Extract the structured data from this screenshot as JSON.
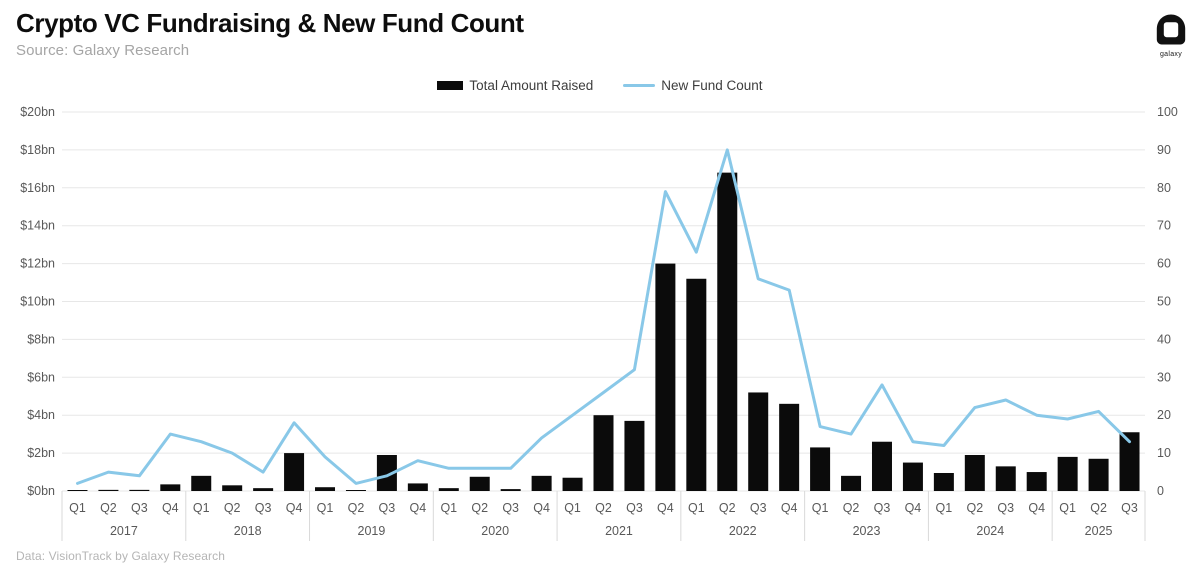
{
  "header": {
    "title": "Crypto VC Fundraising & New Fund Count",
    "subtitle": "Source: Galaxy Research",
    "logo_text": "galaxy"
  },
  "legend": {
    "bar_label": "Total Amount Raised",
    "line_label": "New Fund Count"
  },
  "footer": {
    "note": "Data: VisionTrack by Galaxy Research"
  },
  "chart_data": {
    "type": "bar",
    "subtype": "bar+line dual axis",
    "quarters": [
      "Q1",
      "Q2",
      "Q3",
      "Q4",
      "Q1",
      "Q2",
      "Q3",
      "Q4",
      "Q1",
      "Q2",
      "Q3",
      "Q4",
      "Q1",
      "Q2",
      "Q3",
      "Q4",
      "Q1",
      "Q2",
      "Q3",
      "Q4",
      "Q1",
      "Q2",
      "Q3",
      "Q4",
      "Q1",
      "Q2",
      "Q3",
      "Q4",
      "Q1",
      "Q2",
      "Q3",
      "Q4",
      "Q1",
      "Q2",
      "Q3"
    ],
    "year_groups": [
      {
        "label": "2017",
        "count": 4
      },
      {
        "label": "2018",
        "count": 4
      },
      {
        "label": "2019",
        "count": 4
      },
      {
        "label": "2020",
        "count": 4
      },
      {
        "label": "2021",
        "count": 4
      },
      {
        "label": "2022",
        "count": 4
      },
      {
        "label": "2023",
        "count": 4
      },
      {
        "label": "2024",
        "count": 4
      },
      {
        "label": "2025",
        "count": 3
      }
    ],
    "series": [
      {
        "name": "Total Amount Raised",
        "type": "bar",
        "axis": "left",
        "unit": "$bn",
        "values": [
          0.03,
          0.06,
          0.06,
          0.35,
          0.8,
          0.3,
          0.15,
          2.0,
          0.2,
          0.05,
          1.9,
          0.4,
          0.15,
          0.75,
          0.1,
          0.8,
          0.7,
          4.0,
          3.7,
          12.0,
          11.2,
          16.8,
          5.2,
          4.6,
          2.3,
          0.8,
          2.6,
          1.5,
          0.95,
          1.9,
          1.3,
          1.0,
          1.8,
          1.7,
          3.1
        ]
      },
      {
        "name": "New Fund Count",
        "type": "line",
        "axis": "right",
        "values": [
          2,
          5,
          4,
          15,
          13,
          10,
          5,
          18,
          9,
          2,
          4,
          8,
          6,
          6,
          6,
          14,
          20,
          26,
          32,
          79,
          63,
          90,
          56,
          53,
          17,
          15,
          28,
          13,
          12,
          22,
          24,
          20,
          19,
          21,
          13
        ]
      }
    ],
    "left_axis": {
      "min": 0,
      "max": 20,
      "step": 2,
      "ticks": [
        "$0bn",
        "$2bn",
        "$4bn",
        "$6bn",
        "$8bn",
        "$10bn",
        "$12bn",
        "$14bn",
        "$16bn",
        "$18bn",
        "$20bn"
      ]
    },
    "right_axis": {
      "min": 0,
      "max": 100,
      "step": 10,
      "ticks": [
        "0",
        "10",
        "20",
        "30",
        "40",
        "50",
        "60",
        "70",
        "80",
        "90",
        "100"
      ]
    },
    "grid": "horizontal",
    "legend_position": "top-center",
    "colors": {
      "bar": "#0b0b0b",
      "line": "#89C8E8",
      "grid": "#e7e7e7",
      "axis_text": "#595959",
      "separator": "#d9d9d9"
    }
  }
}
